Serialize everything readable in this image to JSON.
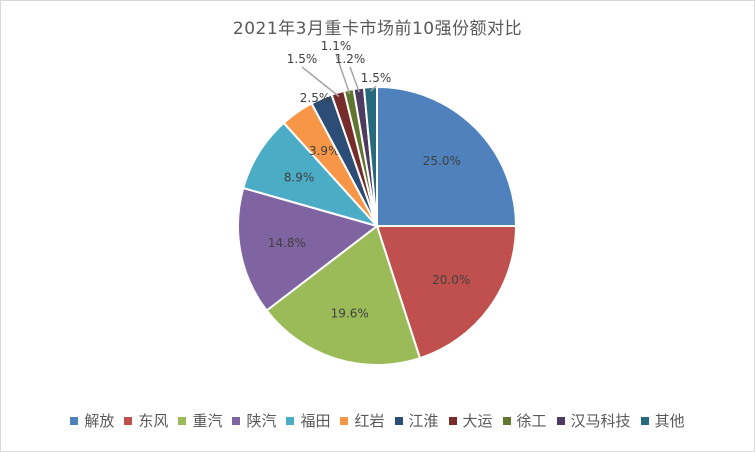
{
  "chart_data": {
    "type": "pie",
    "title": "2021年3月重卡市场前10强份额对比",
    "categories": [
      "解放",
      "东风",
      "重汽",
      "陕汽",
      "福田",
      "红岩",
      "江淮",
      "大运",
      "徐工",
      "汉马科技",
      "其他"
    ],
    "values": [
      25.0,
      20.0,
      19.6,
      14.8,
      8.9,
      3.9,
      2.5,
      1.5,
      1.1,
      1.2,
      1.5
    ],
    "labels": [
      "25.0%",
      "20.0%",
      "19.6%",
      "14.8%",
      "8.9%",
      "3.9%",
      "2.5%",
      "1.5%",
      "1.1%",
      "1.2%",
      "1.5%"
    ],
    "colors": [
      "#4f81bd",
      "#c0504d",
      "#9bbb59",
      "#8064a2",
      "#4bacc6",
      "#f79646",
      "#2c4d75",
      "#772c2a",
      "#5f7530",
      "#4d3b62",
      "#276a7c"
    ],
    "start_angle_deg": 0,
    "direction": "clockwise",
    "legend_position": "bottom"
  }
}
